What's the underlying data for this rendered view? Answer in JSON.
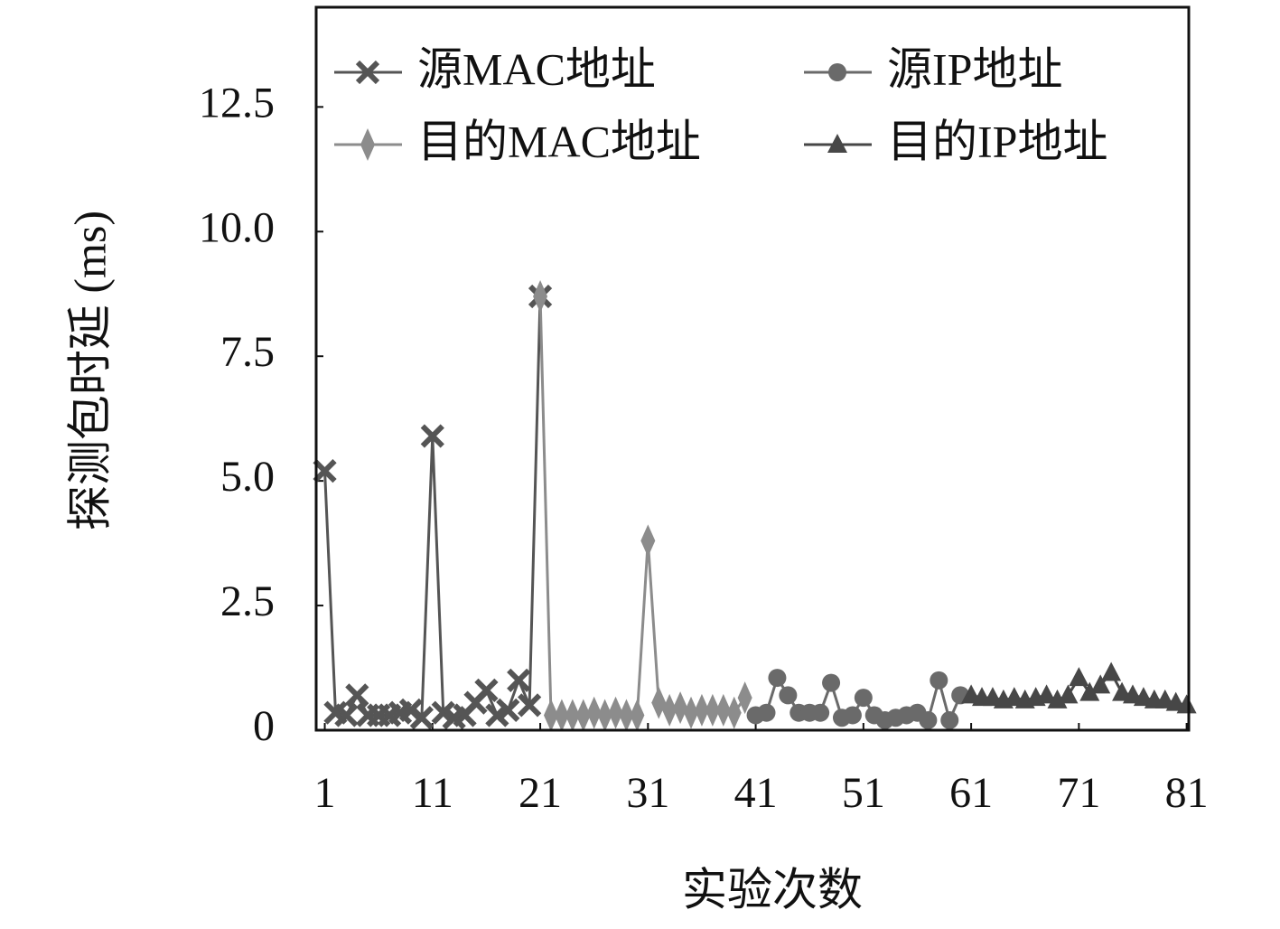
{
  "chart_data": {
    "type": "line",
    "xlabel": "实验次数",
    "ylabel": "探测包时延 (ms)",
    "xlim": [
      0.2,
      81.2
    ],
    "ylim": [
      0,
      14.5
    ],
    "xticks": [
      1,
      11,
      21,
      31,
      41,
      51,
      61,
      71,
      81
    ],
    "yticks": [
      0,
      2.5,
      {
        "value": 5,
        "label": "5.0"
      },
      7.5,
      {
        "value": 10,
        "label": "10.0"
      },
      12.5
    ],
    "series": [
      {
        "name": "源MAC地址",
        "color": "#555555",
        "marker": "x",
        "x": [
          1,
          2,
          3,
          4,
          5,
          6,
          7,
          8,
          9,
          10,
          11,
          12,
          13,
          14,
          15,
          16,
          17,
          18,
          19,
          20,
          21
        ],
        "values": [
          5.2,
          0.35,
          0.3,
          0.7,
          0.3,
          0.3,
          0.3,
          0.35,
          0.4,
          0.25,
          5.9,
          0.35,
          0.25,
          0.3,
          0.55,
          0.8,
          0.3,
          0.4,
          1.0,
          0.5,
          8.7
        ]
      },
      {
        "name": "源IP地址",
        "color": "#6a6a6a",
        "marker": "o",
        "x": [
          41,
          42,
          43,
          44,
          45,
          46,
          47,
          48,
          49,
          50,
          51,
          52,
          53,
          54,
          55,
          56,
          57,
          58,
          59,
          60
        ],
        "values": [
          0.3,
          0.35,
          1.05,
          0.7,
          0.35,
          0.35,
          0.35,
          0.95,
          0.25,
          0.3,
          0.65,
          0.3,
          0.2,
          0.25,
          0.3,
          0.35,
          0.2,
          1.0,
          0.2,
          0.7
        ]
      },
      {
        "name": "目的MAC地址",
        "color": "#8c8c8c",
        "marker": "d",
        "x": [
          21,
          22,
          23,
          24,
          25,
          26,
          27,
          28,
          29,
          30,
          31,
          32,
          33,
          34,
          35,
          36,
          37,
          38,
          39,
          40
        ],
        "values": [
          8.7,
          0.3,
          0.3,
          0.3,
          0.3,
          0.35,
          0.3,
          0.35,
          0.3,
          0.3,
          3.8,
          0.55,
          0.4,
          0.45,
          0.35,
          0.4,
          0.4,
          0.4,
          0.35,
          0.65
        ]
      },
      {
        "name": "目的IP地址",
        "color": "#474747",
        "marker": "^",
        "x": [
          61,
          62,
          63,
          64,
          65,
          66,
          67,
          68,
          69,
          70,
          71,
          72,
          73,
          74,
          75,
          76,
          77,
          78,
          79,
          80,
          81
        ],
        "values": [
          0.7,
          0.65,
          0.65,
          0.6,
          0.65,
          0.6,
          0.65,
          0.7,
          0.6,
          0.7,
          1.05,
          0.75,
          0.9,
          1.15,
          0.75,
          0.7,
          0.65,
          0.6,
          0.6,
          0.55,
          0.5
        ]
      }
    ]
  }
}
